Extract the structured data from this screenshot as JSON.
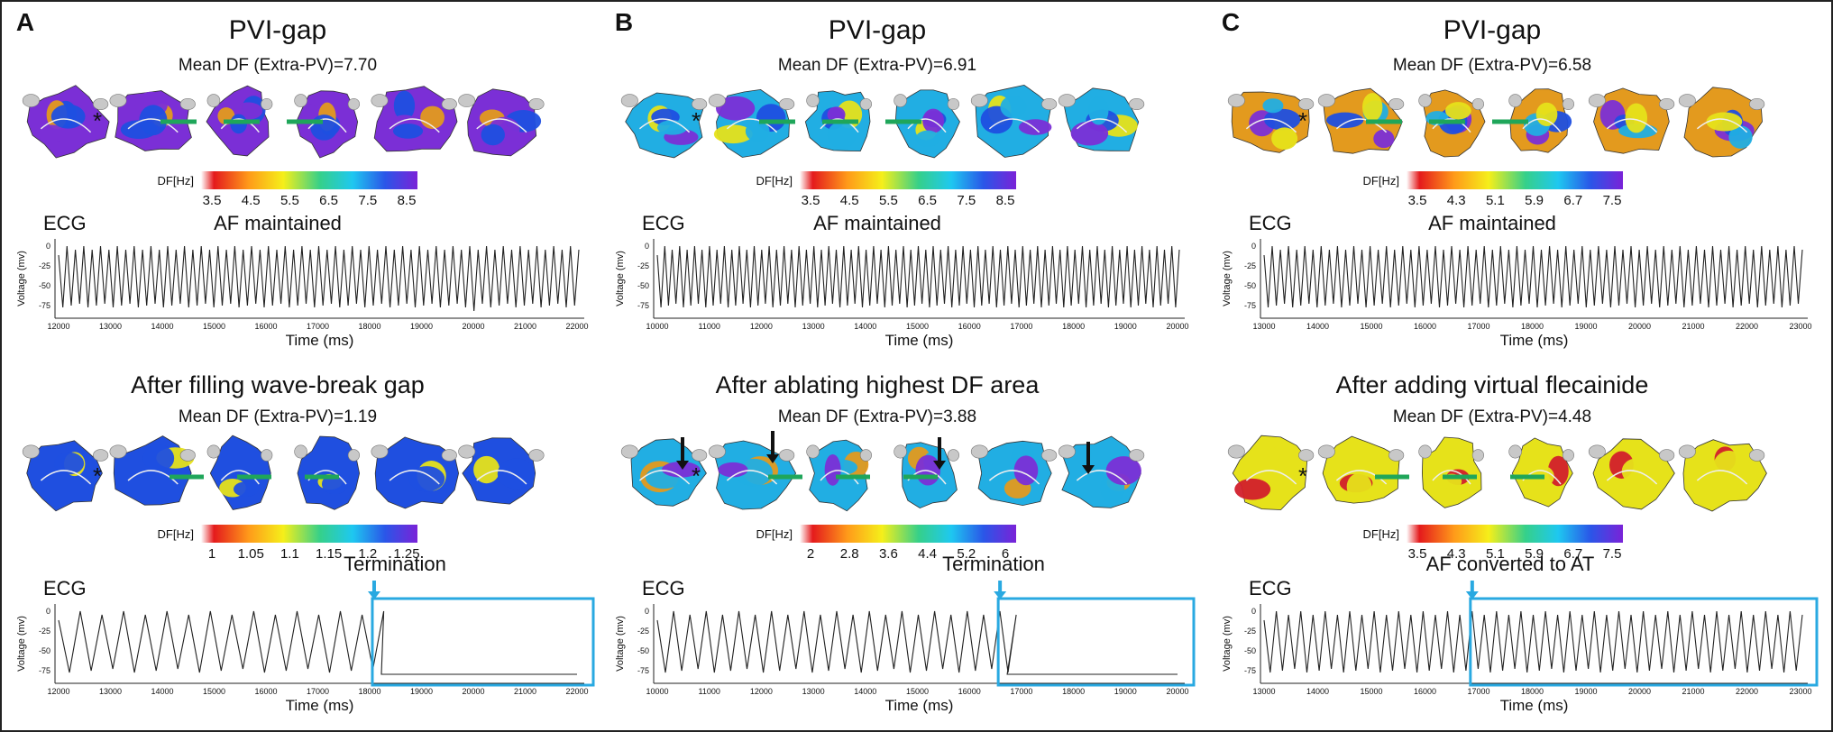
{
  "panels": [
    {
      "letter": "A",
      "top_title": "PVI-gap",
      "top_df": "Mean DF (Extra-PV)=7.70",
      "top_scale": {
        "label": "DF[Hz]",
        "ticks": [
          "3.5",
          "4.5",
          "5.5",
          "6.5",
          "7.5",
          "8.5"
        ]
      },
      "ecg1": {
        "label": "ECG",
        "status": "AF maintained",
        "ylabel": "Voltage (mv)",
        "yticks": [
          "0",
          "-25",
          "-50",
          "-75"
        ],
        "xlabel": "Time (ms)",
        "xticks": [
          "12000",
          "13000",
          "14000",
          "15000",
          "16000",
          "17000",
          "18000",
          "19000",
          "20000",
          "21000",
          "22000"
        ]
      },
      "bottom_title": "After filling wave-break gap",
      "bottom_df": "Mean DF (Extra-PV)=1.19",
      "bottom_scale": {
        "label": "DF[Hz]",
        "ticks": [
          "1",
          "1.05",
          "1.1",
          "1.15",
          "1.2",
          "1.25"
        ]
      },
      "outcome": "Termination",
      "ecg2": {
        "label": "ECG",
        "ylabel": "Voltage (mv)",
        "yticks": [
          "0",
          "-25",
          "-50",
          "-75"
        ],
        "xlabel": "Time (ms)",
        "xticks": [
          "12000",
          "13000",
          "14000",
          "15000",
          "16000",
          "17000",
          "18000",
          "19000",
          "20000",
          "21000",
          "22000"
        ]
      }
    },
    {
      "letter": "B",
      "top_title": "PVI-gap",
      "top_df": "Mean DF (Extra-PV)=6.91",
      "top_scale": {
        "label": "DF[Hz]",
        "ticks": [
          "3.5",
          "4.5",
          "5.5",
          "6.5",
          "7.5",
          "8.5"
        ]
      },
      "ecg1": {
        "label": "ECG",
        "status": "AF maintained",
        "ylabel": "Voltage (mv)",
        "yticks": [
          "0",
          "-25",
          "-50",
          "-75"
        ],
        "xlabel": "Time (ms)",
        "xticks": [
          "10000",
          "11000",
          "12000",
          "13000",
          "14000",
          "15000",
          "16000",
          "17000",
          "18000",
          "19000",
          "20000"
        ]
      },
      "bottom_title": "After ablating highest DF area",
      "bottom_df": "Mean DF (Extra-PV)=3.88",
      "bottom_scale": {
        "label": "DF[Hz]",
        "ticks": [
          "2",
          "2.8",
          "3.6",
          "4.4",
          "5.2",
          "6"
        ]
      },
      "outcome": "Termination",
      "ecg2": {
        "label": "ECG",
        "ylabel": "Voltage (mv)",
        "yticks": [
          "0",
          "-25",
          "-50",
          "-75"
        ],
        "xlabel": "Time (ms)",
        "xticks": [
          "10000",
          "11000",
          "12000",
          "13000",
          "14000",
          "15000",
          "16000",
          "17000",
          "18000",
          "19000",
          "20000"
        ]
      }
    },
    {
      "letter": "C",
      "top_title": "PVI-gap",
      "top_df": "Mean DF (Extra-PV)=6.58",
      "top_scale": {
        "label": "DF[Hz]",
        "ticks": [
          "3.5",
          "4.3",
          "5.1",
          "5.9",
          "6.7",
          "7.5"
        ]
      },
      "ecg1": {
        "label": "ECG",
        "status": "AF maintained",
        "ylabel": "Voltage (mv)",
        "yticks": [
          "0",
          "-25",
          "-50",
          "-75"
        ],
        "xlabel": "Time (ms)",
        "xticks": [
          "13000",
          "14000",
          "15000",
          "16000",
          "17000",
          "18000",
          "19000",
          "20000",
          "21000",
          "22000",
          "23000"
        ]
      },
      "bottom_title": "After adding virtual flecainide",
      "bottom_df": "Mean DF (Extra-PV)=4.48",
      "bottom_scale": {
        "label": "DF[Hz]",
        "ticks": [
          "3.5",
          "4.3",
          "5.1",
          "5.9",
          "6.7",
          "7.5"
        ]
      },
      "outcome": "AF converted to AT",
      "ecg2": {
        "label": "ECG",
        "ylabel": "Voltage (mv)",
        "yticks": [
          "0",
          "-25",
          "-50",
          "-75"
        ],
        "xlabel": "Time (ms)",
        "xticks": [
          "13000",
          "14000",
          "15000",
          "16000",
          "17000",
          "18000",
          "19000",
          "20000",
          "21000",
          "22000",
          "23000"
        ]
      }
    }
  ],
  "colors": {
    "purple": "#7b2fd6",
    "blue": "#1f4fe0",
    "cyan": "#21aee3",
    "yellow": "#e6e21a",
    "orange": "#e39a1e",
    "red": "#d21f2b",
    "green": "#1fa65a",
    "highlight": "#29a9e1",
    "grey": "#c8c8c8"
  }
}
